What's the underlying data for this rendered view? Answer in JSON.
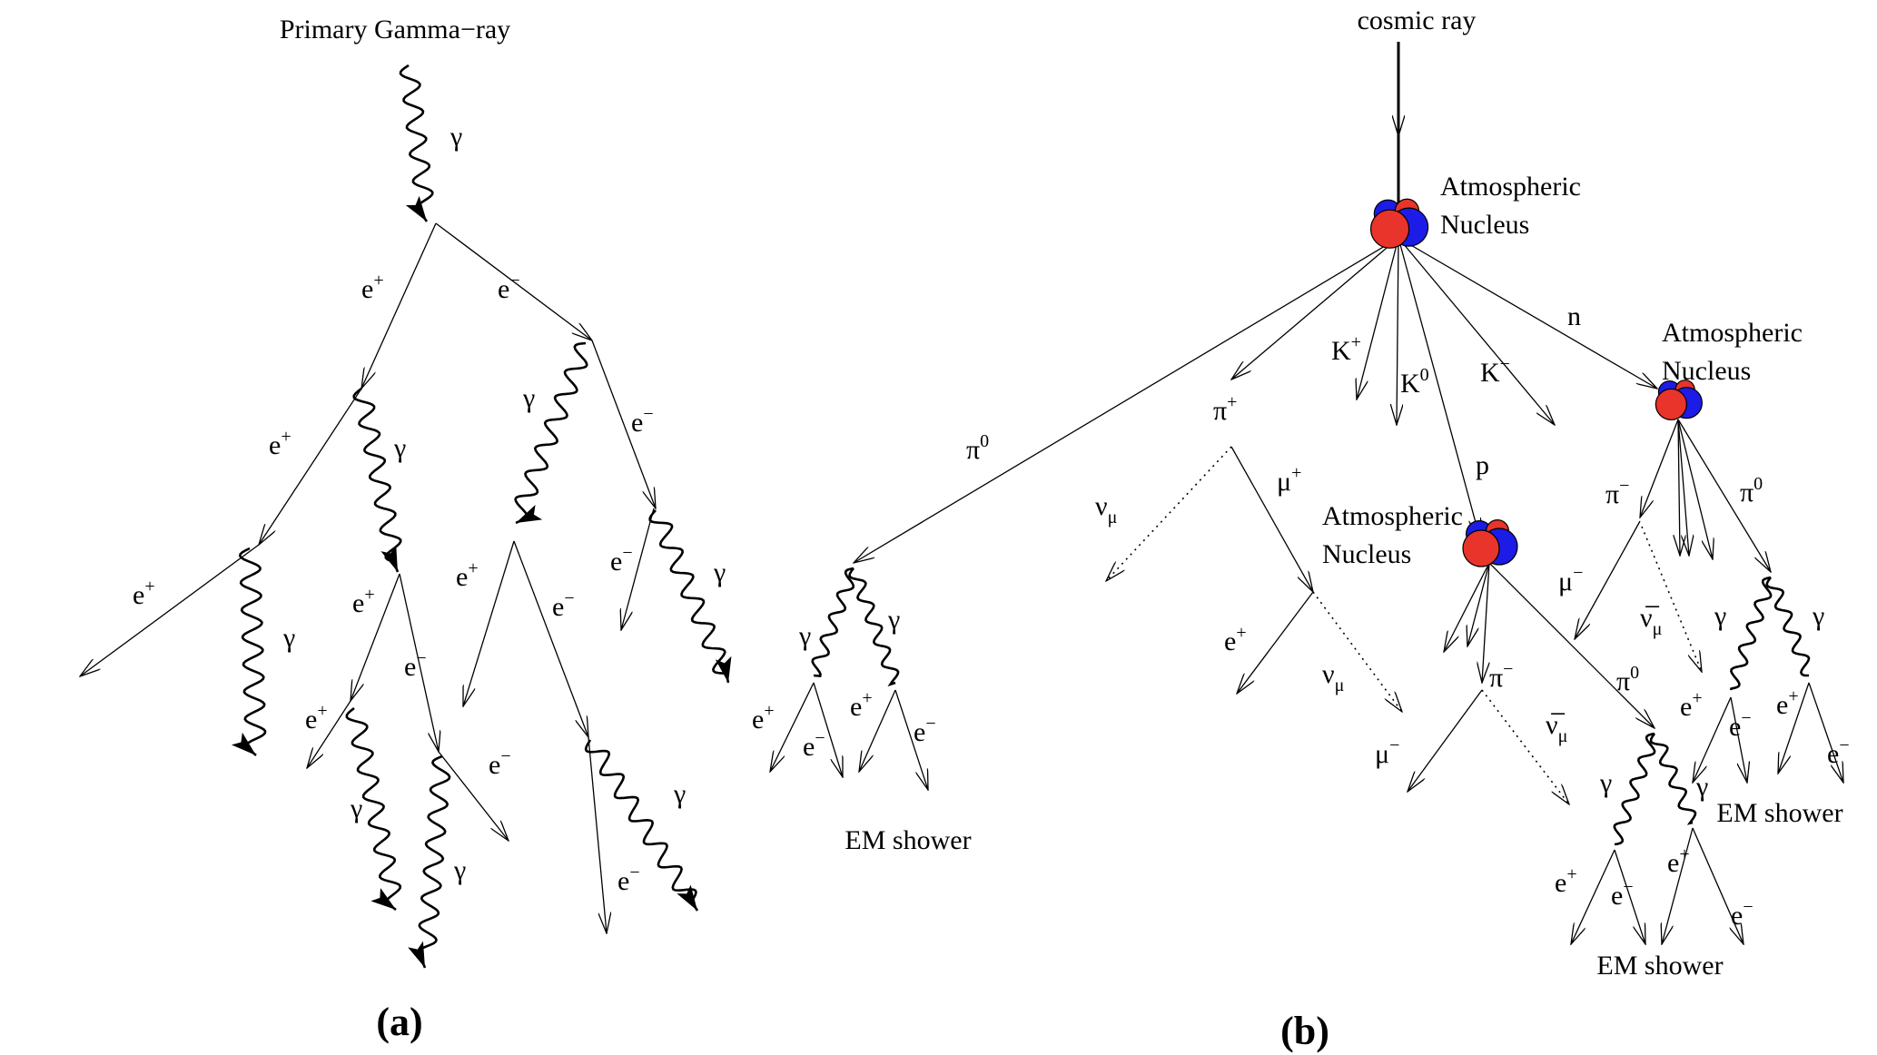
{
  "panel_a": {
    "caption": "(a)",
    "title": "Primary Gamma−ray",
    "labels": {
      "gamma": "γ",
      "e_plus": "e+",
      "e_minus": "e−"
    }
  },
  "panel_b": {
    "caption": "(b)",
    "title": "cosmic ray",
    "nucleus_line1": "Atmospheric",
    "nucleus_line2": "Nucleus",
    "em_shower": "EM shower",
    "labels": {
      "gamma": "γ",
      "e_plus": "e+",
      "e_minus": "e−",
      "n": "n",
      "p": "p",
      "k_plus": "K+",
      "k_zero": "K0",
      "k_minus": "K−",
      "pi_plus": "π+",
      "pi_zero": "π0",
      "pi_minus": "π−",
      "mu_plus": "μ+",
      "mu_minus": "μ−",
      "nu_mu": "νμ",
      "anti_nu_mu": "ν̅μ"
    }
  },
  "colors": {
    "proton": "#e8342a",
    "neutron": "#1c1ce6",
    "ink": "#000000"
  }
}
